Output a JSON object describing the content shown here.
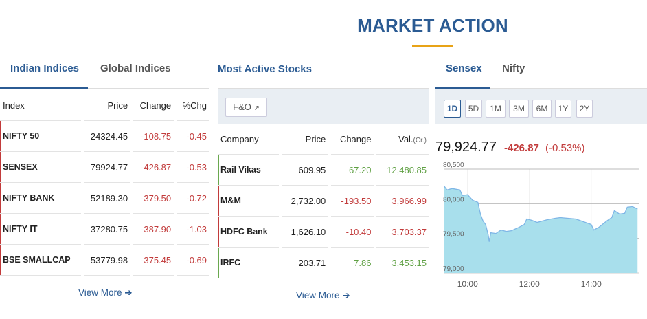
{
  "title": "MARKET ACTION",
  "indices": {
    "tabs": [
      "Indian Indices",
      "Global Indices"
    ],
    "headers": [
      "Index",
      "Price",
      "Change",
      "%Chg"
    ],
    "rows": [
      {
        "name": "NIFTY 50",
        "price": "24324.45",
        "change": "-108.75",
        "pct": "-0.45"
      },
      {
        "name": "SENSEX",
        "price": "79924.77",
        "change": "-426.87",
        "pct": "-0.53"
      },
      {
        "name": "NIFTY BANK",
        "price": "52189.30",
        "change": "-379.50",
        "pct": "-0.72"
      },
      {
        "name": "NIFTY IT",
        "price": "37280.75",
        "change": "-387.90",
        "pct": "-1.03"
      },
      {
        "name": "BSE SMALLCAP",
        "price": "53779.98",
        "change": "-375.45",
        "pct": "-0.69"
      }
    ],
    "view_more": "View More ➔"
  },
  "stocks": {
    "title": "Most Active Stocks",
    "filter": "F&O",
    "headers": [
      "Company",
      "Price",
      "Change",
      "Val.",
      "(Cr.)"
    ],
    "rows": [
      {
        "name": "Rail Vikas",
        "price": "609.95",
        "change": "67.20",
        "val": "12,480.85",
        "dir": "up"
      },
      {
        "name": "M&M",
        "price": "2,732.00",
        "change": "-193.50",
        "val": "3,966.99",
        "dir": "down"
      },
      {
        "name": "HDFC Bank",
        "price": "1,626.10",
        "change": "-10.40",
        "val": "3,703.37",
        "dir": "down"
      },
      {
        "name": "IRFC",
        "price": "203.71",
        "change": "7.86",
        "val": "3,453.15",
        "dir": "up"
      }
    ],
    "view_more": "View More ➔"
  },
  "chart_panel": {
    "tabs": [
      "Sensex",
      "Nifty"
    ],
    "ranges": [
      "1D",
      "5D",
      "1M",
      "3M",
      "6M",
      "1Y",
      "2Y"
    ],
    "selected_range": "1D",
    "price": "79,924.77",
    "change": "-426.87",
    "pct": "(-0.53%)"
  },
  "chart_data": {
    "type": "area",
    "ylim": [
      79000,
      80500
    ],
    "yticks": [
      "80,500",
      "80,000",
      "79,500",
      "79,000"
    ],
    "xticks": [
      "10:00",
      "12:00",
      "14:00"
    ],
    "fill": "#a8dfec",
    "line": "#7fb6e6",
    "x": [
      "9:15",
      "9:20",
      "9:30",
      "9:45",
      "9:50",
      "10:00",
      "10:10",
      "10:20",
      "10:25",
      "10:30",
      "10:35",
      "10:40",
      "10:42",
      "10:45",
      "10:55",
      "11:05",
      "11:15",
      "11:25",
      "11:40",
      "11:50",
      "11:55",
      "12:05",
      "12:15",
      "12:25",
      "12:35",
      "12:50",
      "13:00",
      "13:15",
      "13:30",
      "13:45",
      "14:00",
      "14:05",
      "14:15",
      "14:30",
      "14:40",
      "14:45",
      "14:55",
      "15:05",
      "15:10",
      "15:20",
      "15:30"
    ],
    "y": [
      80250,
      80200,
      80220,
      80200,
      80120,
      80130,
      80050,
      80020,
      79850,
      79750,
      79700,
      79550,
      79450,
      79580,
      79570,
      79620,
      79600,
      79610,
      79660,
      79700,
      79780,
      79760,
      79730,
      79750,
      79770,
      79790,
      79800,
      79790,
      79780,
      79740,
      79700,
      79620,
      79660,
      79750,
      79800,
      79900,
      79850,
      79860,
      79950,
      79960,
      79924
    ]
  }
}
